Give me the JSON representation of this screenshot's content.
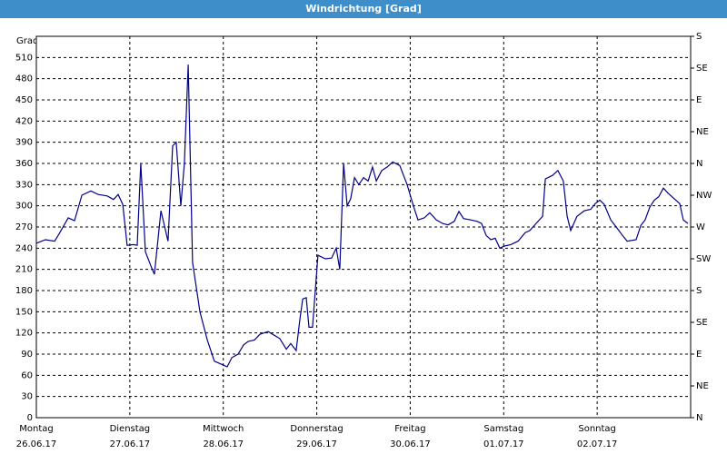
{
  "chart_data": {
    "type": "line",
    "title": "Windrichtung [Grad]",
    "ylabel": "Grad",
    "xlim": [
      0,
      168
    ],
    "xticks": [
      {
        "value": 0,
        "label": "Montag",
        "date": "26.06.17"
      },
      {
        "value": 24,
        "label": "Dienstag",
        "date": "27.06.17"
      },
      {
        "value": 48,
        "label": "Mittwoch",
        "date": "28.06.17"
      },
      {
        "value": 72,
        "label": "Donnerstag",
        "date": "29.06.17"
      },
      {
        "value": 96,
        "label": "Freitag",
        "date": "30.06.17"
      },
      {
        "value": 120,
        "label": "Samstag",
        "date": "01.07.17"
      },
      {
        "value": 144,
        "label": "Sonntag",
        "date": "02.07.17"
      }
    ],
    "ylim": [
      0,
      540
    ],
    "yticks": [
      0,
      30,
      60,
      90,
      120,
      150,
      180,
      210,
      240,
      270,
      300,
      330,
      360,
      390,
      420,
      450,
      480,
      510
    ],
    "y2lim": [
      0,
      540
    ],
    "y2ticks": [
      {
        "value": 0,
        "label": "N"
      },
      {
        "value": 45,
        "label": "NE"
      },
      {
        "value": 90,
        "label": "E"
      },
      {
        "value": 135,
        "label": "SE"
      },
      {
        "value": 180,
        "label": "S"
      },
      {
        "value": 225,
        "label": "SW"
      },
      {
        "value": 270,
        "label": "W"
      },
      {
        "value": 315,
        "label": "NW"
      },
      {
        "value": 360,
        "label": "N"
      },
      {
        "value": 405,
        "label": "NE"
      },
      {
        "value": 450,
        "label": "E"
      },
      {
        "value": 495,
        "label": "SE"
      },
      {
        "value": 540,
        "label": "S"
      }
    ],
    "grid": true,
    "color": "#00008b",
    "x": [
      0,
      2.3,
      4.7,
      5.8,
      8.2,
      9.8,
      11.7,
      14,
      15.9,
      18.2,
      19.8,
      21,
      22.2,
      23.3,
      25,
      25.9,
      26.8,
      28,
      29.4,
      30.3,
      32,
      33.8,
      35,
      35.9,
      37.1,
      38,
      39,
      40.1,
      42,
      43.9,
      45.7,
      47.8,
      49,
      50.2,
      51.8,
      53.2,
      54.4,
      56,
      57.4,
      59.5,
      60.7,
      62.5,
      64.2,
      65.3,
      66.7,
      67.7,
      68.4,
      69.3,
      70,
      70.9,
      72.3,
      74.2,
      75.8,
      77,
      77.9,
      78.9,
      79.8,
      80.7,
      81.7,
      82.8,
      84,
      85.2,
      86.3,
      87.3,
      88.7,
      90.1,
      91.5,
      93.3,
      95.2,
      96.8,
      98,
      99.6,
      101,
      102.7,
      104.3,
      105.7,
      107.3,
      108.5,
      109.7,
      111.5,
      113.2,
      114.3,
      115.5,
      116.7,
      117.8,
      119,
      120.2,
      121.8,
      123.7,
      125.5,
      126.7,
      128.3,
      130,
      130.7,
      132.5,
      133.9,
      135.3,
      136.3,
      137.2,
      138.8,
      140.7,
      142.3,
      143.5,
      144.7,
      145.8,
      147.5,
      148.9,
      150.5,
      151.7,
      154,
      155.2,
      156.3,
      157.5,
      158.7,
      159.8,
      161,
      162.2,
      163.8,
      165.2,
      166.1,
      167.3
    ],
    "values": [
      247,
      252,
      250,
      260,
      283,
      279,
      315,
      321,
      316,
      314,
      309,
      316,
      302,
      244,
      245,
      244,
      360,
      235,
      215,
      203,
      293,
      250,
      385,
      390,
      300,
      360,
      500,
      220,
      150,
      110,
      80,
      75,
      72,
      85,
      90,
      103,
      108,
      110,
      118,
      122,
      118,
      112,
      97,
      105,
      95,
      140,
      168,
      170,
      128,
      128,
      230,
      225,
      226,
      240,
      210,
      360,
      300,
      310,
      340,
      330,
      340,
      335,
      355,
      335,
      350,
      355,
      362,
      357,
      330,
      300,
      280,
      283,
      290,
      280,
      275,
      273,
      278,
      292,
      282,
      280,
      278,
      275,
      258,
      252,
      254,
      240,
      243,
      245,
      250,
      262,
      265,
      275,
      285,
      338,
      343,
      350,
      335,
      285,
      265,
      285,
      293,
      295,
      303,
      308,
      302,
      280,
      270,
      258,
      250,
      252,
      272,
      280,
      298,
      308,
      313,
      325,
      318,
      310,
      303,
      280,
      275
    ]
  }
}
